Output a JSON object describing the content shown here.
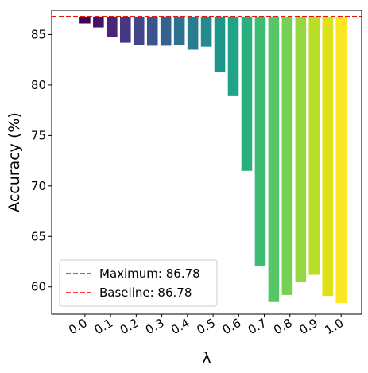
{
  "chart_data": {
    "type": "bar",
    "x": [
      0,
      0.0526,
      0.1053,
      0.1579,
      0.2105,
      0.2632,
      0.3158,
      0.3684,
      0.4211,
      0.4737,
      0.5263,
      0.5789,
      0.6316,
      0.6842,
      0.7368,
      0.7895,
      0.8421,
      0.8947,
      0.9474,
      1.0
    ],
    "values": [
      86.1,
      85.7,
      84.8,
      84.2,
      84.0,
      83.9,
      83.9,
      84.0,
      83.5,
      83.8,
      81.3,
      78.9,
      71.5,
      62.1,
      58.5,
      59.2,
      60.5,
      61.2,
      59.1,
      58.4
    ],
    "colors": [
      "#440154",
      "#481467",
      "#482576",
      "#453781",
      "#404688",
      "#39558c",
      "#33638d",
      "#2d718e",
      "#287d8e",
      "#238a8d",
      "#1f968b",
      "#20a386",
      "#29af7f",
      "#3dbc74",
      "#56c667",
      "#75d054",
      "#95d840",
      "#bade28",
      "#dde318",
      "#fde725"
    ],
    "reference_lines": [
      {
        "name": "Maximum: 86.78",
        "value": 86.78,
        "color": "green"
      },
      {
        "name": "Baseline: 86.78",
        "value": 86.78,
        "color": "red"
      }
    ],
    "xlabel": "λ",
    "ylabel": "Accuracy (%)",
    "xlim": [
      -0.13,
      1.08
    ],
    "xticks": [
      {
        "value": 0,
        "label": "0.0"
      },
      0.1,
      0.2,
      0.3,
      0.4,
      0.5,
      0.6,
      0.7,
      0.8,
      0.9,
      {
        "value": 1,
        "label": "1.0"
      }
    ],
    "ylim": [
      57.3,
      87.4
    ],
    "yticks": [
      60,
      65,
      70,
      75,
      80,
      85
    ],
    "legend": "lower left"
  }
}
